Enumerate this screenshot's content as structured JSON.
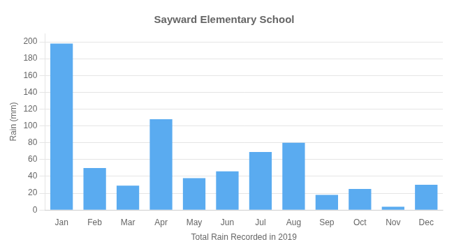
{
  "chart_data": {
    "type": "bar",
    "title": "Sayward Elementary School",
    "xlabel": "Total Rain Recorded in 2019",
    "ylabel": "Rain (mm)",
    "categories": [
      "Jan",
      "Feb",
      "Mar",
      "Apr",
      "May",
      "Jun",
      "Jul",
      "Aug",
      "Sep",
      "Oct",
      "Nov",
      "Dec"
    ],
    "values": [
      198,
      50,
      29,
      108,
      38,
      46,
      69,
      80,
      18,
      25,
      4,
      30
    ],
    "color": "#5aabf0",
    "ylim": [
      0,
      210
    ],
    "yticks": [
      0,
      20,
      40,
      60,
      80,
      100,
      120,
      140,
      160,
      180,
      200
    ],
    "grid": true
  }
}
